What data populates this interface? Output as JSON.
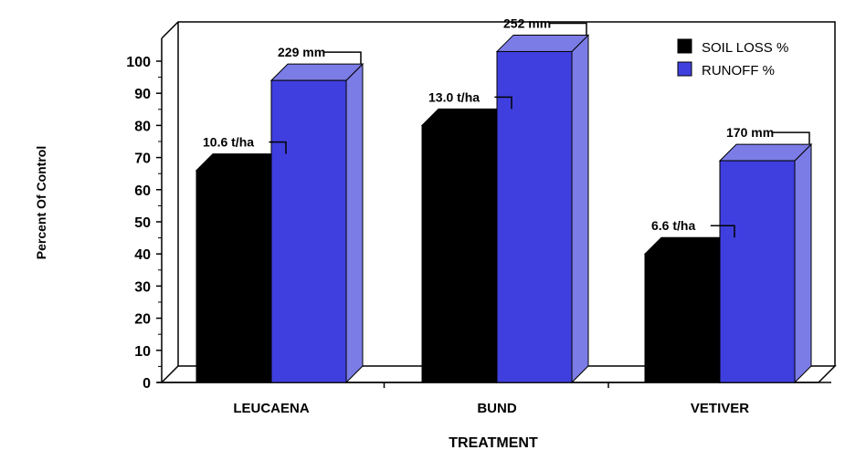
{
  "chart_data": {
    "type": "bar",
    "categories": [
      "LEUCAENA",
      "BUND",
      "VETIVER"
    ],
    "series": [
      {
        "name": "SOIL LOSS %",
        "color": "#000000",
        "values": [
          66,
          80,
          40
        ],
        "labels": [
          "10.6 t/ha",
          "13.0 t/ha",
          "6.6 t/ha"
        ]
      },
      {
        "name": "RUNOFF %",
        "color": "#3f3fdf",
        "side_color": "#7c7ce6",
        "values": [
          94,
          103,
          69
        ],
        "labels": [
          "229 mm",
          "252 mm",
          "170 mm"
        ]
      }
    ],
    "xlabel": "TREATMENT",
    "ylabel": "Percent Of Control",
    "ylim": [
      0,
      100
    ],
    "yticks": [
      0,
      10,
      20,
      30,
      40,
      50,
      60,
      70,
      80,
      90,
      100
    ],
    "legend_position": "top-right",
    "grid": false,
    "style": "3d-bar"
  }
}
